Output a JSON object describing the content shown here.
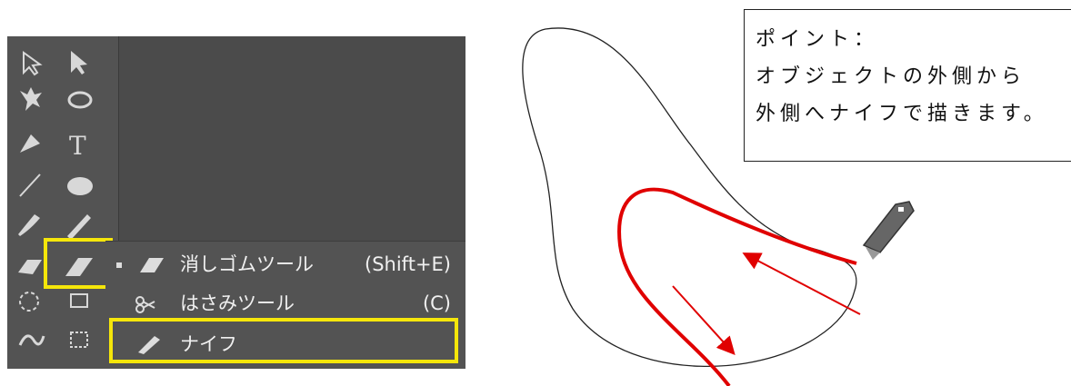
{
  "toolbar": {
    "type_tool": "T"
  },
  "menu": {
    "items": [
      {
        "label": "消しゴムツール",
        "shortcut": "(Shift+E)"
      },
      {
        "label": "はさみツール",
        "shortcut": "(C)"
      },
      {
        "label": "ナイフ"
      }
    ]
  },
  "note": {
    "lines": [
      "ポイント：",
      "オブジェクトの外側から",
      "外側へナイフで描きます。"
    ]
  }
}
